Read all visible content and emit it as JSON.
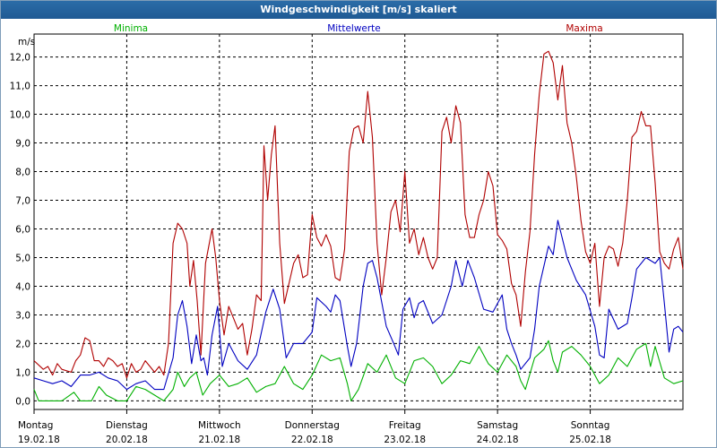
{
  "window": {
    "title": "Windgeschwindigkeit [m/s] skaliert"
  },
  "chart_data": {
    "type": "line",
    "title": "Windgeschwindigkeit [m/s] skaliert",
    "ylabel": "m/s",
    "xlabel": "",
    "ylim": [
      -0.3,
      12.8
    ],
    "xlim": [
      0,
      7
    ],
    "grid": true,
    "legend_position": "top",
    "yticks": [
      "0,0",
      "1,0",
      "2,0",
      "3,0",
      "4,0",
      "5,0",
      "6,0",
      "7,0",
      "8,0",
      "9,0",
      "10,0",
      "11,0",
      "12,0"
    ],
    "xticks": [
      {
        "day": "Montag",
        "date": "19.02.18"
      },
      {
        "day": "Dienstag",
        "date": "20.02.18"
      },
      {
        "day": "Mittwoch",
        "date": "21.02.18"
      },
      {
        "day": "Donnerstag",
        "date": "22.02.18"
      },
      {
        "day": "Freitag",
        "date": "23.02.18"
      },
      {
        "day": "Samstag",
        "date": "24.02.18"
      },
      {
        "day": "Sonntag",
        "date": "25.02.18"
      }
    ],
    "series": [
      {
        "name": "Minima",
        "color": "#00b000",
        "points": [
          [
            0.0,
            0.4
          ],
          [
            0.05,
            0.0
          ],
          [
            0.3,
            0.0
          ],
          [
            0.43,
            0.3
          ],
          [
            0.5,
            0.0
          ],
          [
            0.62,
            0.0
          ],
          [
            0.7,
            0.5
          ],
          [
            0.78,
            0.2
          ],
          [
            0.9,
            0.0
          ],
          [
            1.0,
            0.0
          ],
          [
            1.1,
            0.5
          ],
          [
            1.2,
            0.4
          ],
          [
            1.3,
            0.2
          ],
          [
            1.4,
            0.0
          ],
          [
            1.5,
            0.4
          ],
          [
            1.55,
            1.0
          ],
          [
            1.62,
            0.5
          ],
          [
            1.68,
            0.8
          ],
          [
            1.75,
            1.0
          ],
          [
            1.82,
            0.2
          ],
          [
            1.9,
            0.6
          ],
          [
            2.0,
            0.9
          ],
          [
            2.1,
            0.5
          ],
          [
            2.2,
            0.6
          ],
          [
            2.3,
            0.8
          ],
          [
            2.4,
            0.3
          ],
          [
            2.5,
            0.5
          ],
          [
            2.6,
            0.6
          ],
          [
            2.7,
            1.2
          ],
          [
            2.8,
            0.6
          ],
          [
            2.9,
            0.4
          ],
          [
            3.0,
            0.9
          ],
          [
            3.1,
            1.6
          ],
          [
            3.2,
            1.4
          ],
          [
            3.3,
            1.5
          ],
          [
            3.38,
            0.6
          ],
          [
            3.42,
            0.0
          ],
          [
            3.5,
            0.4
          ],
          [
            3.6,
            1.3
          ],
          [
            3.7,
            1.0
          ],
          [
            3.8,
            1.6
          ],
          [
            3.9,
            0.8
          ],
          [
            4.0,
            0.6
          ],
          [
            4.1,
            1.4
          ],
          [
            4.2,
            1.5
          ],
          [
            4.3,
            1.2
          ],
          [
            4.4,
            0.6
          ],
          [
            4.5,
            0.9
          ],
          [
            4.6,
            1.4
          ],
          [
            4.7,
            1.3
          ],
          [
            4.8,
            1.9
          ],
          [
            4.9,
            1.3
          ],
          [
            5.0,
            1.0
          ],
          [
            5.1,
            1.6
          ],
          [
            5.2,
            1.2
          ],
          [
            5.25,
            0.7
          ],
          [
            5.3,
            0.4
          ],
          [
            5.4,
            1.5
          ],
          [
            5.5,
            1.8
          ],
          [
            5.55,
            2.1
          ],
          [
            5.6,
            1.4
          ],
          [
            5.65,
            1.0
          ],
          [
            5.7,
            1.7
          ],
          [
            5.8,
            1.9
          ],
          [
            5.9,
            1.6
          ],
          [
            6.0,
            1.2
          ],
          [
            6.1,
            0.6
          ],
          [
            6.2,
            0.9
          ],
          [
            6.3,
            1.5
          ],
          [
            6.4,
            1.2
          ],
          [
            6.5,
            1.8
          ],
          [
            6.6,
            2.0
          ],
          [
            6.65,
            1.2
          ],
          [
            6.7,
            1.9
          ],
          [
            6.8,
            0.8
          ],
          [
            6.9,
            0.6
          ],
          [
            7.0,
            0.7
          ]
        ]
      },
      {
        "name": "Mittelwerte",
        "color": "#0000c0",
        "points": [
          [
            0.0,
            0.8
          ],
          [
            0.1,
            0.7
          ],
          [
            0.2,
            0.6
          ],
          [
            0.3,
            0.7
          ],
          [
            0.4,
            0.5
          ],
          [
            0.5,
            0.9
          ],
          [
            0.6,
            0.9
          ],
          [
            0.7,
            1.0
          ],
          [
            0.8,
            0.8
          ],
          [
            0.9,
            0.7
          ],
          [
            1.0,
            0.4
          ],
          [
            1.1,
            0.6
          ],
          [
            1.2,
            0.7
          ],
          [
            1.3,
            0.4
          ],
          [
            1.4,
            0.4
          ],
          [
            1.5,
            1.5
          ],
          [
            1.55,
            3.0
          ],
          [
            1.6,
            3.5
          ],
          [
            1.65,
            2.6
          ],
          [
            1.7,
            1.3
          ],
          [
            1.75,
            2.3
          ],
          [
            1.8,
            1.4
          ],
          [
            1.83,
            1.5
          ],
          [
            1.87,
            0.9
          ],
          [
            1.92,
            2.3
          ],
          [
            1.98,
            3.3
          ],
          [
            2.03,
            1.2
          ],
          [
            2.1,
            2.0
          ],
          [
            2.2,
            1.4
          ],
          [
            2.3,
            1.1
          ],
          [
            2.4,
            1.6
          ],
          [
            2.5,
            3.1
          ],
          [
            2.58,
            3.9
          ],
          [
            2.65,
            3.2
          ],
          [
            2.72,
            1.5
          ],
          [
            2.8,
            2.0
          ],
          [
            2.9,
            2.0
          ],
          [
            3.0,
            2.4
          ],
          [
            3.05,
            3.6
          ],
          [
            3.15,
            3.3
          ],
          [
            3.2,
            3.1
          ],
          [
            3.25,
            3.7
          ],
          [
            3.3,
            3.5
          ],
          [
            3.38,
            1.9
          ],
          [
            3.42,
            1.2
          ],
          [
            3.48,
            2.0
          ],
          [
            3.55,
            4.0
          ],
          [
            3.6,
            4.8
          ],
          [
            3.65,
            4.9
          ],
          [
            3.7,
            4.3
          ],
          [
            3.8,
            2.6
          ],
          [
            3.88,
            2.0
          ],
          [
            3.93,
            1.6
          ],
          [
            3.98,
            3.2
          ],
          [
            4.05,
            3.6
          ],
          [
            4.1,
            2.9
          ],
          [
            4.15,
            3.4
          ],
          [
            4.2,
            3.5
          ],
          [
            4.3,
            2.7
          ],
          [
            4.4,
            3.0
          ],
          [
            4.5,
            4.0
          ],
          [
            4.55,
            4.9
          ],
          [
            4.62,
            4.0
          ],
          [
            4.68,
            4.9
          ],
          [
            4.75,
            4.3
          ],
          [
            4.85,
            3.2
          ],
          [
            4.95,
            3.1
          ],
          [
            5.05,
            3.7
          ],
          [
            5.1,
            2.5
          ],
          [
            5.15,
            2.0
          ],
          [
            5.2,
            1.6
          ],
          [
            5.25,
            1.1
          ],
          [
            5.35,
            1.5
          ],
          [
            5.4,
            2.5
          ],
          [
            5.45,
            4.0
          ],
          [
            5.55,
            5.4
          ],
          [
            5.6,
            5.1
          ],
          [
            5.65,
            6.3
          ],
          [
            5.75,
            5.0
          ],
          [
            5.85,
            4.2
          ],
          [
            5.95,
            3.7
          ],
          [
            6.05,
            2.6
          ],
          [
            6.1,
            1.6
          ],
          [
            6.15,
            1.5
          ],
          [
            6.2,
            3.2
          ],
          [
            6.3,
            2.5
          ],
          [
            6.4,
            2.7
          ],
          [
            6.45,
            3.6
          ],
          [
            6.5,
            4.6
          ],
          [
            6.6,
            5.0
          ],
          [
            6.7,
            4.8
          ],
          [
            6.75,
            5.0
          ],
          [
            6.8,
            3.4
          ],
          [
            6.85,
            1.7
          ],
          [
            6.9,
            2.5
          ],
          [
            6.95,
            2.6
          ],
          [
            7.0,
            2.4
          ]
        ]
      },
      {
        "name": "Maxima",
        "color": "#b00000",
        "points": [
          [
            0.0,
            1.4
          ],
          [
            0.1,
            1.1
          ],
          [
            0.15,
            1.2
          ],
          [
            0.2,
            0.9
          ],
          [
            0.25,
            1.3
          ],
          [
            0.3,
            1.1
          ],
          [
            0.4,
            1.0
          ],
          [
            0.45,
            1.4
          ],
          [
            0.5,
            1.6
          ],
          [
            0.55,
            2.2
          ],
          [
            0.6,
            2.1
          ],
          [
            0.65,
            1.4
          ],
          [
            0.7,
            1.4
          ],
          [
            0.75,
            1.2
          ],
          [
            0.8,
            1.5
          ],
          [
            0.85,
            1.4
          ],
          [
            0.9,
            1.2
          ],
          [
            0.95,
            1.3
          ],
          [
            1.0,
            0.8
          ],
          [
            1.05,
            1.3
          ],
          [
            1.1,
            1.0
          ],
          [
            1.15,
            1.1
          ],
          [
            1.2,
            1.4
          ],
          [
            1.3,
            1.0
          ],
          [
            1.35,
            1.2
          ],
          [
            1.4,
            0.9
          ],
          [
            1.45,
            2.0
          ],
          [
            1.5,
            5.5
          ],
          [
            1.55,
            6.2
          ],
          [
            1.6,
            6.0
          ],
          [
            1.65,
            5.5
          ],
          [
            1.68,
            4.0
          ],
          [
            1.72,
            4.9
          ],
          [
            1.76,
            3.5
          ],
          [
            1.8,
            1.6
          ],
          [
            1.85,
            4.8
          ],
          [
            1.92,
            6.0
          ],
          [
            1.96,
            5.0
          ],
          [
            2.0,
            3.5
          ],
          [
            2.05,
            2.3
          ],
          [
            2.1,
            3.3
          ],
          [
            2.2,
            2.5
          ],
          [
            2.25,
            2.7
          ],
          [
            2.3,
            1.6
          ],
          [
            2.35,
            2.5
          ],
          [
            2.4,
            3.7
          ],
          [
            2.45,
            3.5
          ],
          [
            2.48,
            8.9
          ],
          [
            2.52,
            7.0
          ],
          [
            2.56,
            8.6
          ],
          [
            2.6,
            9.6
          ],
          [
            2.65,
            5.5
          ],
          [
            2.7,
            3.4
          ],
          [
            2.8,
            4.8
          ],
          [
            2.85,
            5.1
          ],
          [
            2.9,
            4.3
          ],
          [
            2.95,
            4.4
          ],
          [
            3.0,
            6.5
          ],
          [
            3.05,
            5.7
          ],
          [
            3.1,
            5.4
          ],
          [
            3.15,
            5.8
          ],
          [
            3.2,
            5.4
          ],
          [
            3.25,
            4.3
          ],
          [
            3.3,
            4.2
          ],
          [
            3.35,
            5.3
          ],
          [
            3.4,
            8.7
          ],
          [
            3.45,
            9.5
          ],
          [
            3.5,
            9.6
          ],
          [
            3.55,
            9.0
          ],
          [
            3.6,
            10.8
          ],
          [
            3.65,
            9.2
          ],
          [
            3.7,
            5.5
          ],
          [
            3.75,
            3.7
          ],
          [
            3.8,
            5.0
          ],
          [
            3.85,
            6.6
          ],
          [
            3.9,
            7.0
          ],
          [
            3.95,
            5.9
          ],
          [
            4.0,
            8.0
          ],
          [
            4.05,
            5.5
          ],
          [
            4.1,
            6.0
          ],
          [
            4.15,
            5.1
          ],
          [
            4.2,
            5.7
          ],
          [
            4.25,
            5.0
          ],
          [
            4.3,
            4.6
          ],
          [
            4.35,
            5.0
          ],
          [
            4.4,
            9.4
          ],
          [
            4.45,
            9.9
          ],
          [
            4.5,
            9.0
          ],
          [
            4.55,
            10.3
          ],
          [
            4.6,
            9.7
          ],
          [
            4.65,
            6.5
          ],
          [
            4.7,
            5.7
          ],
          [
            4.75,
            5.7
          ],
          [
            4.8,
            6.5
          ],
          [
            4.85,
            7.0
          ],
          [
            4.9,
            8.0
          ],
          [
            4.95,
            7.5
          ],
          [
            5.0,
            5.8
          ],
          [
            5.05,
            5.6
          ],
          [
            5.1,
            5.3
          ],
          [
            5.15,
            4.1
          ],
          [
            5.2,
            3.7
          ],
          [
            5.25,
            2.6
          ],
          [
            5.3,
            4.5
          ],
          [
            5.35,
            5.9
          ],
          [
            5.4,
            8.6
          ],
          [
            5.45,
            10.7
          ],
          [
            5.5,
            12.1
          ],
          [
            5.55,
            12.2
          ],
          [
            5.6,
            11.8
          ],
          [
            5.65,
            10.5
          ],
          [
            5.7,
            11.7
          ],
          [
            5.75,
            9.7
          ],
          [
            5.8,
            9.0
          ],
          [
            5.85,
            7.8
          ],
          [
            5.9,
            6.3
          ],
          [
            5.95,
            5.2
          ],
          [
            6.0,
            4.8
          ],
          [
            6.05,
            5.5
          ],
          [
            6.1,
            3.3
          ],
          [
            6.15,
            5.0
          ],
          [
            6.2,
            5.4
          ],
          [
            6.25,
            5.3
          ],
          [
            6.3,
            4.7
          ],
          [
            6.35,
            5.5
          ],
          [
            6.4,
            7.0
          ],
          [
            6.45,
            9.2
          ],
          [
            6.5,
            9.4
          ],
          [
            6.55,
            10.1
          ],
          [
            6.6,
            9.6
          ],
          [
            6.65,
            9.6
          ],
          [
            6.7,
            7.6
          ],
          [
            6.75,
            5.2
          ],
          [
            6.8,
            4.8
          ],
          [
            6.85,
            4.6
          ],
          [
            6.9,
            5.3
          ],
          [
            6.95,
            5.7
          ],
          [
            7.0,
            4.6
          ]
        ]
      }
    ]
  }
}
